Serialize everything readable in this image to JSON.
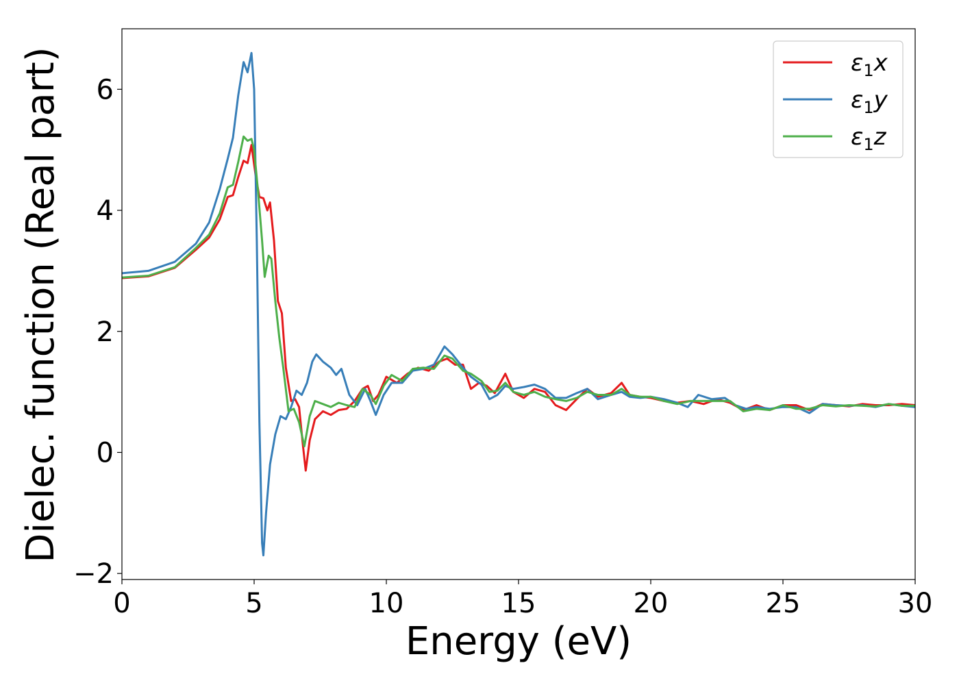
{
  "chart_data": {
    "type": "line",
    "title": "",
    "xlabel": "Energy (eV)",
    "ylabel": "Dielec. function (Real part)",
    "xlim": [
      0,
      30
    ],
    "ylim": [
      -2.1,
      7.0
    ],
    "x_ticks": [
      0,
      5,
      10,
      15,
      20,
      25,
      30
    ],
    "y_ticks": [
      -2,
      0,
      2,
      4,
      6
    ],
    "y_tick_labels": [
      "−2",
      "0",
      "2",
      "4",
      "6"
    ],
    "grid": false,
    "legend_position": "top-right",
    "colors": {
      "x": "#e41a1c",
      "y": "#377eb8",
      "z": "#4daf4a"
    },
    "series": [
      {
        "name": "ε1x",
        "legend_main": "ε",
        "legend_sub": "1",
        "legend_suffix": "x",
        "color_key": "x",
        "points": [
          [
            0,
            2.88
          ],
          [
            1,
            2.91
          ],
          [
            2,
            3.05
          ],
          [
            2.8,
            3.35
          ],
          [
            3.3,
            3.55
          ],
          [
            3.7,
            3.85
          ],
          [
            4.0,
            4.22
          ],
          [
            4.2,
            4.25
          ],
          [
            4.4,
            4.55
          ],
          [
            4.6,
            4.82
          ],
          [
            4.75,
            4.78
          ],
          [
            4.9,
            5.08
          ],
          [
            5.05,
            4.6
          ],
          [
            5.2,
            4.22
          ],
          [
            5.35,
            4.2
          ],
          [
            5.5,
            4.0
          ],
          [
            5.6,
            4.13
          ],
          [
            5.75,
            3.5
          ],
          [
            5.9,
            2.5
          ],
          [
            6.05,
            2.3
          ],
          [
            6.2,
            1.4
          ],
          [
            6.4,
            0.85
          ],
          [
            6.55,
            0.88
          ],
          [
            6.7,
            0.75
          ],
          [
            6.85,
            0.1
          ],
          [
            6.95,
            -0.3
          ],
          [
            7.1,
            0.2
          ],
          [
            7.3,
            0.55
          ],
          [
            7.6,
            0.68
          ],
          [
            7.9,
            0.62
          ],
          [
            8.2,
            0.7
          ],
          [
            8.5,
            0.72
          ],
          [
            8.8,
            0.85
          ],
          [
            9.1,
            1.05
          ],
          [
            9.3,
            1.1
          ],
          [
            9.5,
            0.85
          ],
          [
            9.7,
            0.95
          ],
          [
            10.0,
            1.25
          ],
          [
            10.4,
            1.15
          ],
          [
            10.8,
            1.3
          ],
          [
            11.2,
            1.4
          ],
          [
            11.6,
            1.35
          ],
          [
            12.0,
            1.5
          ],
          [
            12.3,
            1.55
          ],
          [
            12.6,
            1.45
          ],
          [
            12.9,
            1.45
          ],
          [
            13.2,
            1.05
          ],
          [
            13.5,
            1.15
          ],
          [
            13.8,
            1.1
          ],
          [
            14.1,
            0.98
          ],
          [
            14.5,
            1.3
          ],
          [
            14.8,
            1.0
          ],
          [
            15.2,
            0.9
          ],
          [
            15.6,
            1.05
          ],
          [
            16.0,
            1.0
          ],
          [
            16.4,
            0.78
          ],
          [
            16.8,
            0.7
          ],
          [
            17.2,
            0.88
          ],
          [
            17.6,
            1.05
          ],
          [
            18.0,
            0.92
          ],
          [
            18.5,
            0.98
          ],
          [
            18.9,
            1.15
          ],
          [
            19.2,
            0.95
          ],
          [
            19.6,
            0.92
          ],
          [
            20.0,
            0.9
          ],
          [
            20.5,
            0.85
          ],
          [
            21.0,
            0.82
          ],
          [
            21.5,
            0.85
          ],
          [
            22.0,
            0.8
          ],
          [
            22.5,
            0.88
          ],
          [
            23.0,
            0.82
          ],
          [
            23.5,
            0.7
          ],
          [
            24.0,
            0.78
          ],
          [
            24.5,
            0.7
          ],
          [
            25.0,
            0.78
          ],
          [
            25.5,
            0.78
          ],
          [
            26.0,
            0.7
          ],
          [
            26.5,
            0.8
          ],
          [
            27.0,
            0.78
          ],
          [
            27.5,
            0.76
          ],
          [
            28.0,
            0.8
          ],
          [
            28.5,
            0.78
          ],
          [
            29.0,
            0.78
          ],
          [
            29.5,
            0.8
          ],
          [
            30.0,
            0.78
          ]
        ]
      },
      {
        "name": "ε1y",
        "legend_main": "ε",
        "legend_sub": "1",
        "legend_suffix": "y",
        "color_key": "y",
        "points": [
          [
            0,
            2.96
          ],
          [
            1,
            3.0
          ],
          [
            2,
            3.15
          ],
          [
            2.8,
            3.45
          ],
          [
            3.3,
            3.8
          ],
          [
            3.7,
            4.35
          ],
          [
            4.0,
            4.85
          ],
          [
            4.2,
            5.2
          ],
          [
            4.4,
            5.9
          ],
          [
            4.6,
            6.45
          ],
          [
            4.75,
            6.28
          ],
          [
            4.9,
            6.6
          ],
          [
            5.0,
            6.0
          ],
          [
            5.1,
            3.5
          ],
          [
            5.2,
            0.5
          ],
          [
            5.3,
            -1.5
          ],
          [
            5.35,
            -1.7
          ],
          [
            5.45,
            -1.0
          ],
          [
            5.6,
            -0.2
          ],
          [
            5.8,
            0.3
          ],
          [
            6.0,
            0.6
          ],
          [
            6.2,
            0.55
          ],
          [
            6.4,
            0.75
          ],
          [
            6.6,
            1.02
          ],
          [
            6.8,
            0.95
          ],
          [
            7.0,
            1.15
          ],
          [
            7.2,
            1.5
          ],
          [
            7.35,
            1.62
          ],
          [
            7.6,
            1.5
          ],
          [
            7.9,
            1.4
          ],
          [
            8.1,
            1.28
          ],
          [
            8.3,
            1.38
          ],
          [
            8.6,
            0.95
          ],
          [
            8.9,
            0.78
          ],
          [
            9.2,
            1.05
          ],
          [
            9.4,
            0.85
          ],
          [
            9.6,
            0.62
          ],
          [
            9.9,
            0.95
          ],
          [
            10.2,
            1.15
          ],
          [
            10.6,
            1.15
          ],
          [
            11.0,
            1.35
          ],
          [
            11.4,
            1.38
          ],
          [
            11.8,
            1.45
          ],
          [
            12.2,
            1.75
          ],
          [
            12.5,
            1.62
          ],
          [
            12.9,
            1.4
          ],
          [
            13.2,
            1.25
          ],
          [
            13.6,
            1.12
          ],
          [
            13.9,
            0.88
          ],
          [
            14.2,
            0.95
          ],
          [
            14.5,
            1.1
          ],
          [
            14.8,
            1.05
          ],
          [
            15.2,
            1.08
          ],
          [
            15.6,
            1.12
          ],
          [
            16.0,
            1.05
          ],
          [
            16.4,
            0.9
          ],
          [
            16.8,
            0.9
          ],
          [
            17.2,
            0.98
          ],
          [
            17.6,
            1.05
          ],
          [
            18.0,
            0.88
          ],
          [
            18.5,
            0.95
          ],
          [
            18.9,
            1.0
          ],
          [
            19.2,
            0.92
          ],
          [
            19.6,
            0.9
          ],
          [
            20.0,
            0.92
          ],
          [
            20.5,
            0.88
          ],
          [
            21.0,
            0.82
          ],
          [
            21.4,
            0.75
          ],
          [
            21.8,
            0.95
          ],
          [
            22.3,
            0.88
          ],
          [
            22.8,
            0.9
          ],
          [
            23.2,
            0.78
          ],
          [
            23.6,
            0.72
          ],
          [
            24.0,
            0.75
          ],
          [
            24.5,
            0.72
          ],
          [
            25.0,
            0.75
          ],
          [
            25.5,
            0.75
          ],
          [
            26.0,
            0.65
          ],
          [
            26.5,
            0.8
          ],
          [
            27.0,
            0.78
          ],
          [
            27.5,
            0.77
          ],
          [
            28.0,
            0.78
          ],
          [
            28.5,
            0.75
          ],
          [
            29.0,
            0.8
          ],
          [
            29.5,
            0.77
          ],
          [
            30.0,
            0.75
          ]
        ]
      },
      {
        "name": "ε1z",
        "legend_main": "ε",
        "legend_sub": "1",
        "legend_suffix": "z",
        "color_key": "z",
        "points": [
          [
            0,
            2.89
          ],
          [
            1,
            2.92
          ],
          [
            2,
            3.06
          ],
          [
            2.8,
            3.38
          ],
          [
            3.3,
            3.6
          ],
          [
            3.7,
            3.95
          ],
          [
            4.0,
            4.38
          ],
          [
            4.2,
            4.42
          ],
          [
            4.4,
            4.8
          ],
          [
            4.6,
            5.22
          ],
          [
            4.75,
            5.15
          ],
          [
            4.9,
            5.18
          ],
          [
            5.0,
            5.0
          ],
          [
            5.15,
            4.3
          ],
          [
            5.3,
            3.5
          ],
          [
            5.4,
            2.9
          ],
          [
            5.55,
            3.25
          ],
          [
            5.65,
            3.2
          ],
          [
            5.8,
            2.5
          ],
          [
            5.95,
            1.9
          ],
          [
            6.1,
            1.4
          ],
          [
            6.3,
            0.68
          ],
          [
            6.5,
            0.72
          ],
          [
            6.7,
            0.5
          ],
          [
            6.9,
            0.1
          ],
          [
            7.1,
            0.6
          ],
          [
            7.3,
            0.85
          ],
          [
            7.6,
            0.8
          ],
          [
            7.9,
            0.75
          ],
          [
            8.2,
            0.82
          ],
          [
            8.5,
            0.78
          ],
          [
            8.8,
            0.75
          ],
          [
            9.1,
            1.05
          ],
          [
            9.4,
            0.95
          ],
          [
            9.6,
            0.8
          ],
          [
            9.9,
            1.1
          ],
          [
            10.2,
            1.28
          ],
          [
            10.6,
            1.18
          ],
          [
            11.0,
            1.38
          ],
          [
            11.4,
            1.4
          ],
          [
            11.8,
            1.38
          ],
          [
            12.2,
            1.6
          ],
          [
            12.5,
            1.55
          ],
          [
            12.9,
            1.35
          ],
          [
            13.2,
            1.3
          ],
          [
            13.6,
            1.18
          ],
          [
            13.9,
            1.0
          ],
          [
            14.2,
            1.02
          ],
          [
            14.5,
            1.15
          ],
          [
            14.8,
            1.0
          ],
          [
            15.2,
            0.95
          ],
          [
            15.6,
            1.0
          ],
          [
            16.0,
            0.92
          ],
          [
            16.4,
            0.88
          ],
          [
            16.8,
            0.85
          ],
          [
            17.2,
            0.9
          ],
          [
            17.6,
            1.0
          ],
          [
            18.0,
            0.95
          ],
          [
            18.5,
            0.95
          ],
          [
            18.9,
            1.05
          ],
          [
            19.2,
            0.95
          ],
          [
            19.6,
            0.92
          ],
          [
            20.0,
            0.92
          ],
          [
            20.5,
            0.85
          ],
          [
            21.0,
            0.8
          ],
          [
            21.5,
            0.85
          ],
          [
            22.0,
            0.85
          ],
          [
            22.5,
            0.85
          ],
          [
            23.0,
            0.85
          ],
          [
            23.5,
            0.68
          ],
          [
            24.0,
            0.72
          ],
          [
            24.5,
            0.7
          ],
          [
            25.0,
            0.78
          ],
          [
            25.5,
            0.72
          ],
          [
            26.0,
            0.72
          ],
          [
            26.5,
            0.78
          ],
          [
            27.0,
            0.76
          ],
          [
            27.5,
            0.78
          ],
          [
            28.0,
            0.77
          ],
          [
            28.5,
            0.76
          ],
          [
            29.0,
            0.8
          ],
          [
            29.5,
            0.77
          ],
          [
            30.0,
            0.77
          ]
        ]
      }
    ]
  }
}
